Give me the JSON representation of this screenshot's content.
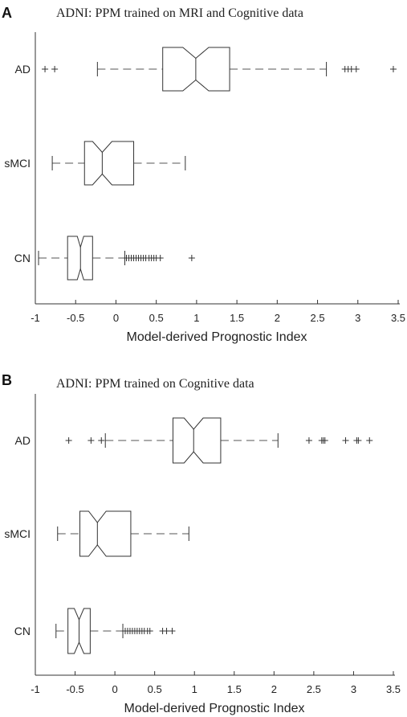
{
  "chart_data": [
    {
      "type": "box",
      "panel": "A",
      "title": "ADNI: PPM trained on MRI and Cognitive data",
      "xlabel": "Model-derived Prognostic Index",
      "xlim": [
        -1,
        3.5
      ],
      "xticks": [
        "-1",
        "-0.5",
        "0",
        "0.5",
        "1",
        "1.5",
        "2",
        "2.5",
        "3",
        "3.5"
      ],
      "tick_values": [
        -1,
        -0.5,
        0,
        0.5,
        1,
        1.5,
        2,
        2.5,
        3,
        3.5
      ],
      "categories": [
        "AD",
        "sMCI",
        "CN"
      ],
      "boxes": [
        {
          "name": "AD",
          "whisker_low": -0.23,
          "q1": 0.58,
          "median": 0.99,
          "q3": 1.41,
          "whisker_high": 2.61,
          "notch": 0.16,
          "outliers": [
            -0.88,
            -0.76,
            2.84,
            2.88,
            2.92,
            2.98,
            3.44
          ]
        },
        {
          "name": "sMCI",
          "whisker_low": -0.79,
          "q1": -0.39,
          "median": -0.17,
          "q3": 0.22,
          "whisker_high": 0.86,
          "notch": 0.12,
          "outliers": []
        },
        {
          "name": "CN",
          "whisker_low": -0.96,
          "q1": -0.6,
          "median": -0.44,
          "q3": -0.29,
          "whisker_high": 0.11,
          "notch": 0.04,
          "outliers": [
            0.13,
            0.16,
            0.19,
            0.22,
            0.25,
            0.28,
            0.31,
            0.34,
            0.37,
            0.41,
            0.44,
            0.47,
            0.5,
            0.55,
            0.94
          ]
        }
      ]
    },
    {
      "type": "box",
      "panel": "B",
      "title": "ADNI: PPM trained on Cognitive data",
      "xlabel": "Model-derived Prognostic Index",
      "xlim": [
        -1,
        3.5
      ],
      "xticks": [
        "-1",
        "-0.5",
        "0",
        "0.5",
        "1",
        "1.5",
        "2",
        "2.5",
        "3",
        "3.5"
      ],
      "tick_values": [
        -1,
        -0.5,
        0,
        0.5,
        1,
        1.5,
        2,
        2.5,
        3,
        3.5
      ],
      "categories": [
        "AD",
        "sMCI",
        "CN"
      ],
      "boxes": [
        {
          "name": "AD",
          "whisker_low": -0.12,
          "q1": 0.73,
          "median": 0.99,
          "q3": 1.33,
          "whisker_high": 2.05,
          "notch": 0.12,
          "outliers": [
            -0.58,
            -0.3,
            -0.17,
            2.44,
            2.6,
            2.62,
            2.64,
            2.9,
            3.04,
            3.06,
            3.2
          ]
        },
        {
          "name": "sMCI",
          "whisker_low": -0.72,
          "q1": -0.44,
          "median": -0.22,
          "q3": 0.2,
          "whisker_high": 0.93,
          "notch": 0.11,
          "outliers": []
        },
        {
          "name": "CN",
          "whisker_low": -0.74,
          "q1": -0.59,
          "median": -0.45,
          "q3": -0.31,
          "whisker_high": 0.1,
          "notch": 0.06,
          "outliers": [
            0.13,
            0.16,
            0.19,
            0.22,
            0.25,
            0.28,
            0.31,
            0.34,
            0.37,
            0.41,
            0.44,
            0.6,
            0.65,
            0.72
          ]
        }
      ]
    }
  ]
}
